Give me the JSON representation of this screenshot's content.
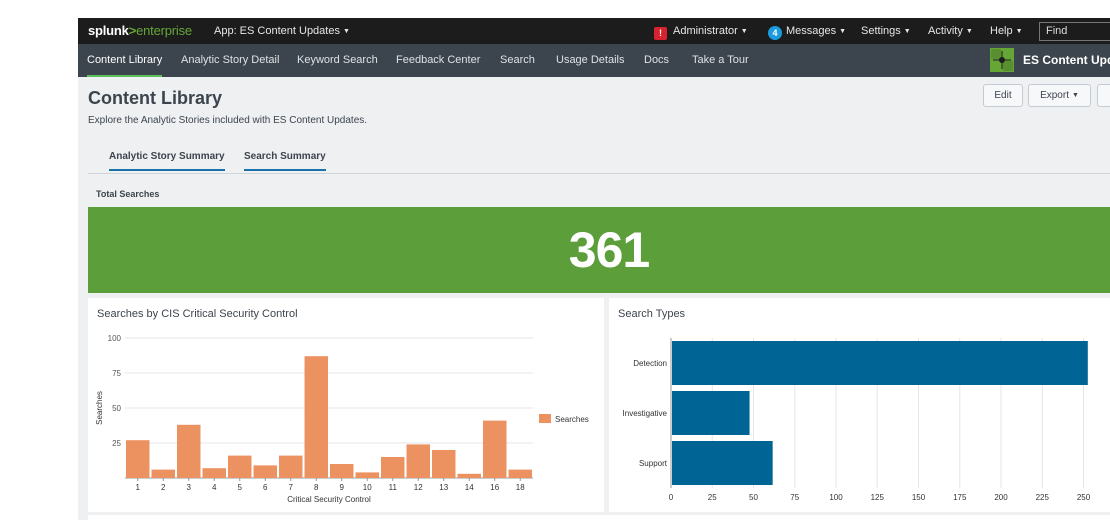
{
  "topbar": {
    "logo_main": "splunk",
    "logo_gt": ">",
    "logo_sub": "enterprise",
    "app_menu": "App: ES Content Updates",
    "admin": "Administrator",
    "messages_count": "4",
    "messages": "Messages",
    "settings": "Settings",
    "activity": "Activity",
    "help": "Help",
    "find_placeholder": "Find"
  },
  "appnav": {
    "items": [
      "Content Library",
      "Analytic Story Detail",
      "Keyword Search",
      "Feedback Center",
      "Search",
      "Usage Details",
      "Docs",
      "Take a Tour"
    ],
    "active": "Content Library",
    "app_title": "ES Content Updates"
  },
  "header": {
    "title": "Content Library",
    "description": "Explore the Analytic Stories included with ES Content Updates.",
    "edit": "Edit",
    "export": "Export"
  },
  "tabs": [
    "Analytic Story Summary",
    "Search Summary"
  ],
  "total": {
    "label": "Total Searches",
    "value": "361",
    "color": "#5b9e3a"
  },
  "colors": {
    "bar_orange": "#ec9160",
    "bar_blue": "#006494",
    "accent_green": "#5cc05c",
    "tab_blue": "#1a73a8"
  },
  "chart_data": [
    {
      "type": "bar",
      "title": "Searches by CIS Critical Security Control",
      "xlabel": "Critical Security Control",
      "ylabel": "Searches",
      "categories": [
        "1",
        "2",
        "3",
        "4",
        "5",
        "6",
        "7",
        "8",
        "9",
        "10",
        "11",
        "12",
        "13",
        "14",
        "16",
        "18"
      ],
      "series": [
        {
          "name": "Searches",
          "values": [
            27,
            6,
            38,
            7,
            16,
            9,
            16,
            87,
            10,
            4,
            15,
            24,
            20,
            3,
            41,
            6
          ]
        }
      ],
      "ylim": [
        0,
        100
      ],
      "yticks": [
        25,
        50,
        75,
        100
      ],
      "legend": "right",
      "grid": true
    },
    {
      "type": "bar",
      "orientation": "horizontal",
      "title": "Search Types",
      "categories": [
        "Detection",
        "Investigative",
        "Support"
      ],
      "values": [
        252,
        47,
        61
      ],
      "xlim": [
        0,
        260
      ],
      "xticks": [
        0,
        25,
        50,
        75,
        100,
        125,
        150,
        175,
        200,
        225,
        250
      ],
      "grid": true
    }
  ]
}
